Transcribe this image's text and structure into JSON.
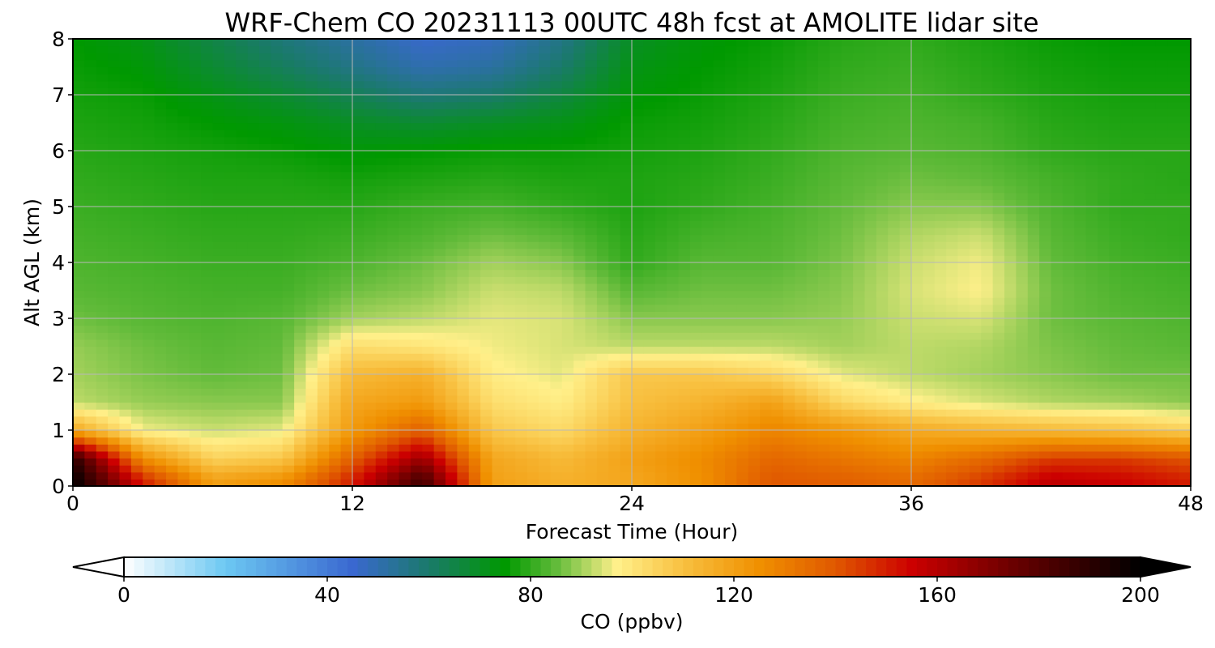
{
  "chart_data": {
    "type": "heatmap",
    "title": "WRF-Chem CO  20231113 00UTC 48h fcst at AMOLITE lidar site",
    "xlabel": "Forecast Time (Hour)",
    "ylabel": "Alt AGL (km)",
    "xlim": [
      0,
      48
    ],
    "ylim": [
      0,
      8
    ],
    "x_ticks": [
      0,
      12,
      24,
      36,
      48
    ],
    "x_tick_labels": [
      "0",
      "12",
      "24",
      "36",
      "48"
    ],
    "y_ticks": [
      0,
      1,
      2,
      3,
      4,
      5,
      6,
      7,
      8
    ],
    "y_tick_labels": [
      "0",
      "1",
      "2",
      "3",
      "4",
      "5",
      "6",
      "7",
      "8"
    ],
    "grid": true,
    "x": [
      0,
      3,
      6,
      9,
      12,
      15,
      18,
      21,
      24,
      27,
      30,
      33,
      36,
      39,
      42,
      45,
      48
    ],
    "y": [
      0.1,
      0.5,
      1.0,
      1.5,
      2.0,
      2.5,
      3.0,
      3.5,
      4.0,
      4.5,
      5.0,
      5.5,
      6.0,
      6.5,
      7.0,
      7.5,
      8.0
    ],
    "z": [
      [
        200,
        150,
        120,
        125,
        150,
        185,
        120,
        115,
        118,
        125,
        140,
        138,
        135,
        145,
        158,
        155,
        150
      ],
      [
        190,
        125,
        105,
        108,
        138,
        165,
        118,
        112,
        120,
        126,
        136,
        132,
        128,
        135,
        145,
        145,
        140
      ],
      [
        118,
        96,
        93,
        95,
        122,
        138,
        108,
        103,
        114,
        120,
        128,
        123,
        117,
        114,
        112,
        110,
        106
      ],
      [
        92,
        89,
        88,
        88,
        118,
        122,
        102,
        98,
        110,
        114,
        120,
        104,
        98,
        94,
        91,
        90,
        88
      ],
      [
        90,
        87,
        85,
        86,
        112,
        115,
        98,
        95,
        108,
        108,
        104,
        95,
        92,
        90,
        88,
        86,
        86
      ],
      [
        89,
        86,
        84,
        85,
        102,
        100,
        96,
        94,
        92,
        92,
        92,
        90,
        92,
        91,
        87,
        85,
        84
      ],
      [
        86,
        84,
        83,
        84,
        90,
        92,
        95,
        94,
        88,
        88,
        88,
        89,
        93,
        94,
        86,
        84,
        83
      ],
      [
        84,
        83,
        82,
        82,
        86,
        88,
        93,
        92,
        84,
        86,
        86,
        88,
        94,
        97,
        86,
        83,
        82
      ],
      [
        83,
        82,
        81,
        81,
        83,
        86,
        90,
        88,
        80,
        84,
        84,
        87,
        93,
        96,
        85,
        82,
        81
      ],
      [
        82,
        81,
        80,
        80,
        81,
        83,
        86,
        84,
        79,
        82,
        83,
        86,
        91,
        93,
        84,
        81,
        80
      ],
      [
        81,
        80,
        79,
        79,
        79,
        81,
        82,
        80,
        78,
        80,
        82,
        85,
        88,
        88,
        83,
        80,
        80
      ],
      [
        80,
        79,
        78,
        78,
        77,
        78,
        79,
        78,
        78,
        79,
        81,
        84,
        86,
        85,
        82,
        80,
        79
      ],
      [
        79,
        78,
        77,
        76,
        74,
        75,
        76,
        76,
        77,
        78,
        80,
        83,
        84,
        83,
        80,
        79,
        79
      ],
      [
        78,
        77,
        75,
        73,
        70,
        68,
        70,
        72,
        76,
        77,
        79,
        82,
        83,
        82,
        79,
        78,
        78
      ],
      [
        77,
        76,
        72,
        68,
        63,
        58,
        60,
        66,
        74,
        76,
        78,
        81,
        82,
        80,
        78,
        77,
        77
      ],
      [
        76,
        74,
        68,
        62,
        56,
        50,
        52,
        60,
        72,
        75,
        77,
        80,
        81,
        79,
        77,
        76,
        76
      ],
      [
        75,
        72,
        65,
        58,
        52,
        46,
        48,
        56,
        70,
        74,
        76,
        79,
        80,
        78,
        76,
        75,
        75
      ]
    ],
    "colorbar": {
      "label": "CO  (ppbv)",
      "min": 0,
      "max": 200,
      "ticks": [
        0,
        40,
        80,
        120,
        160,
        200
      ],
      "tick_labels": [
        "0",
        "40",
        "80",
        "120",
        "160",
        "200"
      ],
      "extend": "both",
      "colors": [
        {
          "value": 0,
          "color": "#ffffff"
        },
        {
          "value": 20,
          "color": "#6cc8f2"
        },
        {
          "value": 45,
          "color": "#3a68d0"
        },
        {
          "value": 60,
          "color": "#1a7a6a"
        },
        {
          "value": 75,
          "color": "#009900"
        },
        {
          "value": 85,
          "color": "#62bb3a"
        },
        {
          "value": 97,
          "color": "#fff08a"
        },
        {
          "value": 110,
          "color": "#f8c040"
        },
        {
          "value": 125,
          "color": "#f09000"
        },
        {
          "value": 140,
          "color": "#e05800"
        },
        {
          "value": 155,
          "color": "#cc0000"
        },
        {
          "value": 175,
          "color": "#6a0000"
        },
        {
          "value": 200,
          "color": "#000000"
        }
      ]
    }
  }
}
